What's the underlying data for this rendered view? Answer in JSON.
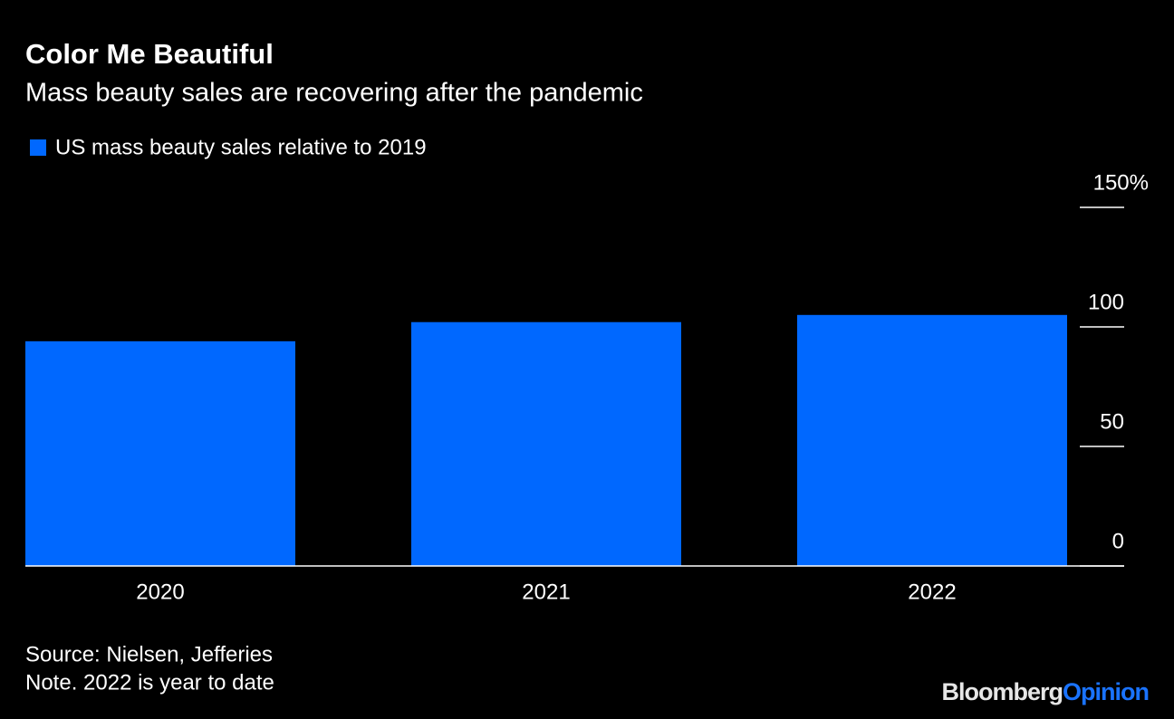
{
  "chart_data": {
    "type": "bar",
    "title": "Color Me Beautiful",
    "subtitle": "Mass beauty sales are recovering after the pandemic",
    "categories": [
      "2020",
      "2021",
      "2022"
    ],
    "series": [
      {
        "name": "US mass beauty sales relative to 2019",
        "color": "#0068ff",
        "values": [
          94,
          102,
          105
        ]
      }
    ],
    "ylim": [
      0,
      150
    ],
    "yticks": [
      0,
      50,
      100,
      {
        "value": 150,
        "label": "150%"
      }
    ],
    "source": "Source: Nielsen, Jefferies",
    "note": "Note. 2022 is year to date"
  },
  "logo": {
    "bloomberg": "Bloomberg",
    "opinion": "Opinion"
  }
}
